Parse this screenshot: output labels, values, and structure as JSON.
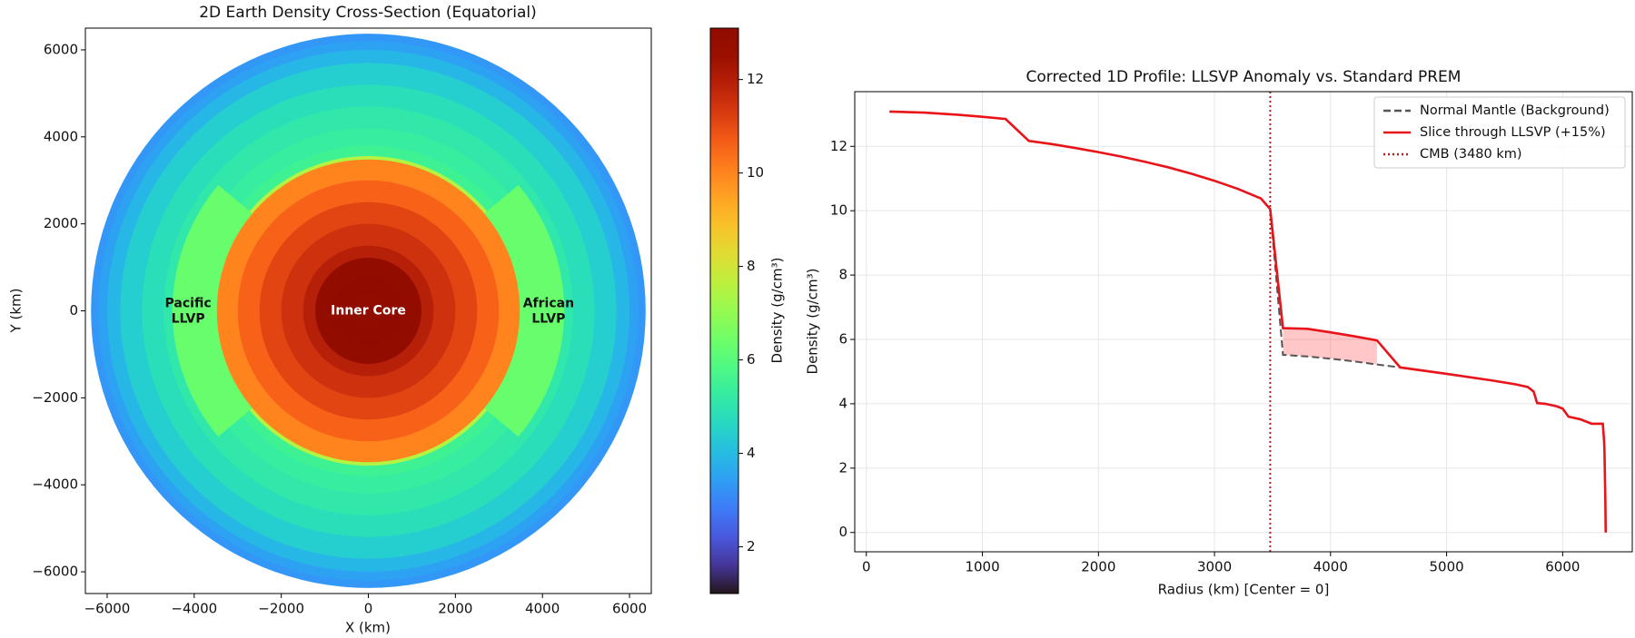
{
  "chart_data": [
    {
      "type": "cross_section",
      "title": "2D Earth Density Cross-Section (Equatorial)",
      "xlabel": "X (km)",
      "ylabel": "Y (km)",
      "xlim": [
        -6500,
        6500
      ],
      "ylim": [
        -6500,
        6500
      ],
      "xticks": [
        {
          "value": -6000,
          "label": "−6000"
        },
        {
          "value": -4000,
          "label": "−4000"
        },
        {
          "value": -2000,
          "label": "−2000"
        },
        0,
        2000,
        4000,
        6000
      ],
      "yticks": [
        {
          "value": -6000,
          "label": "−6000"
        },
        {
          "value": -4000,
          "label": "−4000"
        },
        {
          "value": -2000,
          "label": "−2000"
        },
        0,
        2000,
        4000,
        6000
      ],
      "colormap": "turbo",
      "colorbar": {
        "label": "Density (g/cm³)",
        "lim": [
          1.0,
          13.1
        ],
        "ticks": [
          2,
          4,
          6,
          8,
          10,
          12
        ]
      },
      "radial_profile": {
        "radius": [
          6371,
          6200,
          6000,
          5700,
          5200,
          4700,
          4200,
          3800,
          3560,
          3480,
          3000,
          2500,
          2000,
          1500,
          1221,
          800,
          400
        ],
        "density": [
          3.3,
          3.5,
          3.9,
          4.4,
          4.8,
          5.1,
          5.3,
          5.5,
          7.5,
          10.0,
          10.6,
          11.1,
          11.5,
          11.9,
          12.8,
          13.0,
          13.1
        ]
      },
      "llvps": [
        {
          "label": [
            "Pacific",
            "LLVP"
          ],
          "center_angle": 180,
          "half_angle": 40,
          "r_inner": 3480,
          "r_outer": 4500,
          "density": 6.3
        },
        {
          "label": [
            "African",
            "LLVP"
          ],
          "center_angle": 0,
          "half_angle": 40,
          "r_inner": 3480,
          "r_outer": 4500,
          "density": 6.3
        }
      ],
      "annotation": "Inner Core"
    },
    {
      "type": "line",
      "title": "Corrected 1D Profile: LLSVP Anomaly vs. Standard PREM",
      "xlabel": "Radius (km) [Center = 0]",
      "ylabel": "Density (g/cm³)",
      "xlim": [
        -100,
        6600
      ],
      "ylim": [
        -0.6,
        13.7
      ],
      "xticks": [
        0,
        1000,
        2000,
        3000,
        4000,
        5000,
        6000
      ],
      "yticks": [
        0,
        2,
        4,
        6,
        8,
        10,
        12
      ],
      "grid": true,
      "legend": "upper right",
      "x": [
        200,
        500,
        800,
        1000,
        1200,
        1400,
        1600,
        1800,
        2000,
        2200,
        2400,
        2600,
        2800,
        3000,
        3200,
        3400,
        3480,
        3590,
        3800,
        4000,
        4200,
        4400,
        4600,
        5000,
        5400,
        5600,
        5700,
        5750,
        5780,
        5850,
        5950,
        6000,
        6050,
        6150,
        6250,
        6346,
        6356,
        6360,
        6368,
        6371
      ],
      "series": [
        {
          "name": "Normal Mantle (Background)",
          "color": "#555555",
          "linestyle": "dashed",
          "values": [
            13.08,
            13.05,
            12.98,
            12.92,
            12.85,
            12.17,
            12.07,
            11.95,
            11.82,
            11.68,
            11.52,
            11.35,
            11.15,
            10.93,
            10.68,
            10.38,
            10.05,
            5.52,
            5.47,
            5.4,
            5.32,
            5.22,
            5.13,
            4.93,
            4.72,
            4.6,
            4.52,
            4.38,
            4.02,
            4.0,
            3.92,
            3.85,
            3.6,
            3.52,
            3.38,
            3.38,
            2.9,
            2.6,
            1.0,
            0.0
          ]
        },
        {
          "name": "Slice through LLSVP (+15%)",
          "color": "#e8141a",
          "linestyle": "solid",
          "values": [
            13.08,
            13.05,
            12.98,
            12.92,
            12.85,
            12.17,
            12.07,
            11.95,
            11.82,
            11.68,
            11.52,
            11.35,
            11.15,
            10.93,
            10.68,
            10.38,
            10.05,
            6.35,
            6.33,
            6.22,
            6.1,
            5.97,
            5.13,
            4.93,
            4.72,
            4.6,
            4.52,
            4.38,
            4.02,
            4.0,
            3.92,
            3.85,
            3.6,
            3.52,
            3.38,
            3.38,
            2.9,
            2.6,
            1.0,
            0.0
          ]
        }
      ],
      "vlines": [
        {
          "name": "CMB (3480 km)",
          "x": 3480,
          "color": "#b22222",
          "linestyle": "dotted"
        }
      ],
      "fill_color": "#ff0000",
      "fill_opacity": 0.22
    }
  ]
}
